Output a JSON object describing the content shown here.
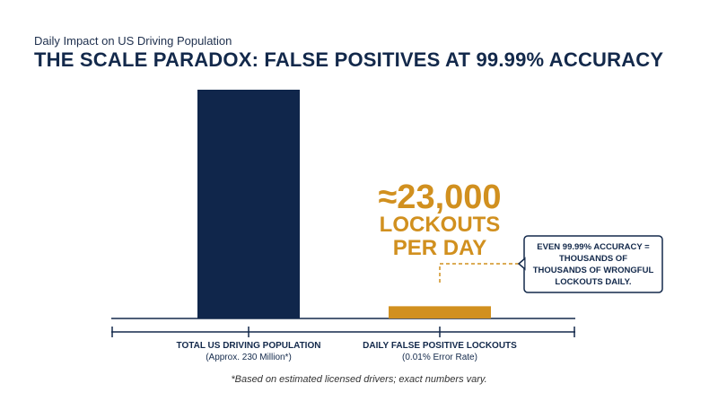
{
  "header": {
    "subtitle": "Daily Impact on US Driving Population",
    "title": "THE SCALE PARADOX: FALSE POSITIVES AT 99.99% ACCURACY"
  },
  "colors": {
    "population_bar": "#10264b",
    "lockout_bar": "#d1901f",
    "text_dark": "#13294b",
    "annotation_border": "#13294b"
  },
  "chart_data": {
    "type": "bar",
    "categories": [
      "TOTAL US DRIVING POPULATION",
      "DAILY FALSE POSITIVE LOCKOUTS"
    ],
    "category_notes": [
      "(Approx. 230 Million*)",
      "(0.01% Error Rate)"
    ],
    "values": [
      230000000,
      23000
    ],
    "axis_break": true,
    "grid": false,
    "callout": {
      "value_text": "≈23,000",
      "line1": "LOCKOUTS",
      "line2": "PER DAY"
    },
    "annotation": {
      "lines": [
        "EVEN 99.99% ACCURACY =",
        "THOUSANDS OF",
        "THOUSANDS OF WRONGFUL",
        "LOCKOUTS DAILY."
      ]
    }
  },
  "footnote": "*Based on estimated licensed drivers; exact numbers vary."
}
